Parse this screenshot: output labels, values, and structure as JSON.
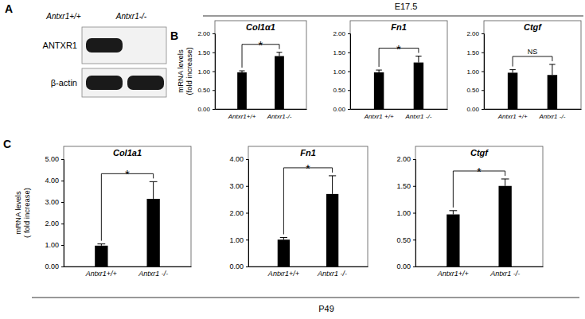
{
  "panel_labels": [
    "A",
    "B",
    "C"
  ],
  "blot": {
    "columns": [
      "Antxr1+/+",
      "Antxr1-/-"
    ],
    "rows": [
      "ANTXR1",
      "β-actin"
    ]
  },
  "groups": [
    "E17.5",
    "P49"
  ],
  "chart_data": [
    {
      "type": "bar",
      "title": "Col1α1",
      "y_label": [
        "mRNA levels",
        "(fold increase)"
      ],
      "categories": [
        "Antxr1+/+",
        "Antxr1-/-"
      ],
      "values": [
        0.97,
        1.4
      ],
      "errors": [
        0.04,
        0.1
      ],
      "color": "#000000",
      "annotation": "*",
      "ylim": [
        0,
        2
      ],
      "yticks": [
        {
          "value": 0,
          "label": "0.00"
        },
        {
          "value": 0.5,
          "label": "0.50"
        },
        {
          "value": 1,
          "label": "1.00"
        },
        {
          "value": 1.5,
          "label": "1.50"
        },
        {
          "value": 2,
          "label": "2.00"
        }
      ]
    },
    {
      "type": "bar",
      "title": "Fn1",
      "categories": [
        "Antxr1 +/+",
        "Antxr1 -/-"
      ],
      "values": [
        0.97,
        1.23
      ],
      "errors": [
        0.06,
        0.17
      ],
      "color": "#000000",
      "annotation": "*",
      "ylim": [
        0,
        2
      ],
      "yticks": [
        {
          "value": 0,
          "label": "0.00"
        },
        {
          "value": 0.5,
          "label": "0.50"
        },
        {
          "value": 1,
          "label": "1.00"
        },
        {
          "value": 1.5,
          "label": "1.50"
        },
        {
          "value": 2,
          "label": "2.00"
        }
      ]
    },
    {
      "type": "bar",
      "title": "Ctgf",
      "categories": [
        "Antxr1 +/+",
        "Antxr1 -/-"
      ],
      "values": [
        0.96,
        0.9
      ],
      "errors": [
        0.08,
        0.28
      ],
      "color": "#000000",
      "annotation": "NS",
      "ylim": [
        0,
        2
      ],
      "yticks": [
        {
          "value": 0,
          "label": "0.00"
        },
        {
          "value": 0.5,
          "label": "0.50"
        },
        {
          "value": 1,
          "label": "1.00"
        },
        {
          "value": 1.5,
          "label": "1.50"
        },
        {
          "value": 2,
          "label": "2.00"
        }
      ]
    },
    {
      "type": "bar",
      "title": "Col1a1",
      "y_label": [
        "mRNA levels",
        "( fold increase)"
      ],
      "categories": [
        "Antxr1+/+",
        "Antxr1 -/-"
      ],
      "values": [
        0.97,
        3.15
      ],
      "errors": [
        0.08,
        0.8
      ],
      "color": "#000000",
      "annotation": "*",
      "ylim": [
        0,
        5
      ],
      "yticks": [
        {
          "value": 0,
          "label": "0.00"
        },
        {
          "value": 1,
          "label": "1.00"
        },
        {
          "value": 2,
          "label": "2.00"
        },
        {
          "value": 3,
          "label": "3.00"
        },
        {
          "value": 4,
          "label": "4.00"
        },
        {
          "value": 5,
          "label": "5.00"
        }
      ]
    },
    {
      "type": "bar",
      "title": "Fn1",
      "categories": [
        "Antxr1+/+",
        "Antxr1 -/-"
      ],
      "values": [
        1.0,
        2.7
      ],
      "errors": [
        0.08,
        0.68
      ],
      "color": "#000000",
      "annotation": "*",
      "ylim": [
        0,
        4
      ],
      "yticks": [
        {
          "value": 0,
          "label": "0.00"
        },
        {
          "value": 1,
          "label": "1.00"
        },
        {
          "value": 2,
          "label": "2.00"
        },
        {
          "value": 3,
          "label": "3.00"
        },
        {
          "value": 4,
          "label": "4.00"
        }
      ]
    },
    {
      "type": "bar",
      "title": "Ctgf",
      "categories": [
        "Antxr1+/+",
        "Antxr1 -/-"
      ],
      "values": [
        0.97,
        1.5
      ],
      "errors": [
        0.07,
        0.13
      ],
      "color": "#000000",
      "annotation": "*",
      "ylim": [
        0,
        2
      ],
      "yticks": [
        {
          "value": 0,
          "label": "0.00"
        },
        {
          "value": 0.5,
          "label": "0.50"
        },
        {
          "value": 1,
          "label": "1.00"
        },
        {
          "value": 1.5,
          "label": "1.50"
        },
        {
          "value": 2,
          "label": "2.00"
        }
      ]
    }
  ]
}
